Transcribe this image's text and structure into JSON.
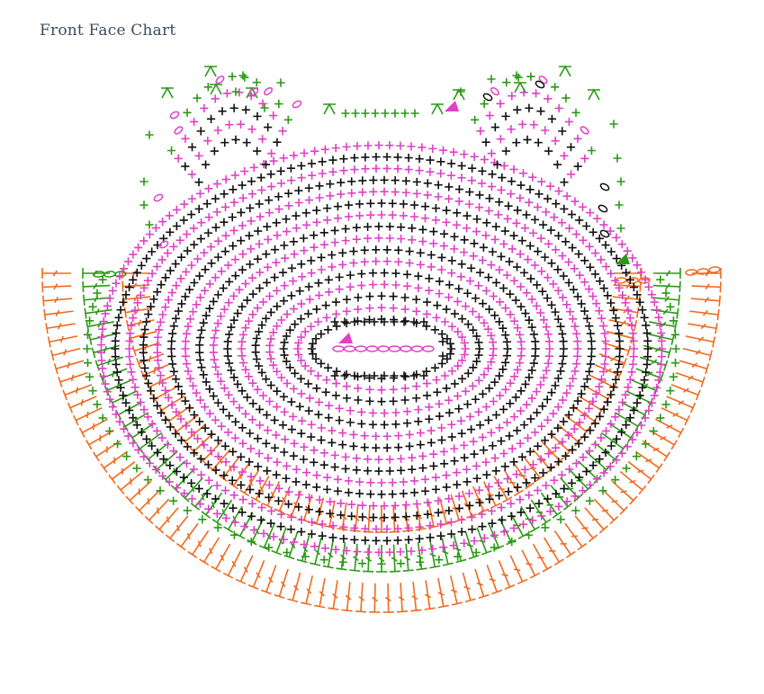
{
  "page": {
    "title": "Front Face Chart"
  },
  "colors": {
    "black": "#111111",
    "pink": "#e040c8",
    "green": "#2a9a14",
    "orange": "#f06a1e",
    "title": "#3d4d5c"
  },
  "symbols": [
    "single-crochet-plus",
    "chain-oval",
    "double-crochet-t",
    "slip-stitch",
    "start-marker-triangle"
  ]
}
